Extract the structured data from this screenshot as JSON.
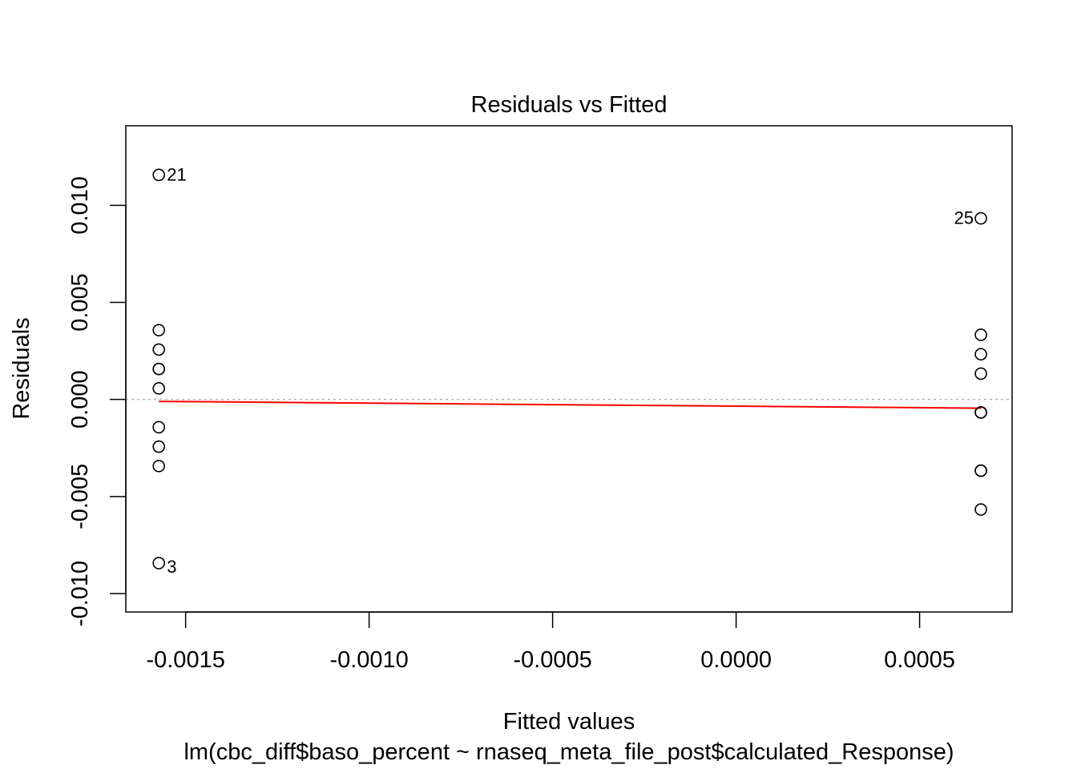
{
  "chart_data": {
    "type": "scatter",
    "title": "Residuals vs Fitted",
    "xlabel": "Fitted values",
    "ylabel": "Residuals",
    "subtitle": "lm(cbc_diff$baso_percent ~ rnaseq_meta_file_post$calculated_Response)",
    "xlim": [
      -0.001663,
      0.000752
    ],
    "ylim": [
      -0.01095,
      0.0141
    ],
    "x_ticks": [
      {
        "value": -0.0015,
        "label": "-0.0015"
      },
      {
        "value": -0.001,
        "label": "-0.0010"
      },
      {
        "value": -0.0005,
        "label": "-0.0005"
      },
      {
        "value": 0.0,
        "label": "0.0000"
      },
      {
        "value": 0.0005,
        "label": "0.0005"
      }
    ],
    "y_ticks": [
      {
        "value": -0.01,
        "label": "-0.010"
      },
      {
        "value": -0.005,
        "label": "-0.005"
      },
      {
        "value": 0.0,
        "label": "0.000"
      },
      {
        "value": 0.005,
        "label": "0.005"
      },
      {
        "value": 0.01,
        "label": "0.010"
      }
    ],
    "points": [
      {
        "x": -0.001573,
        "y": 0.01157,
        "label": "21",
        "label_side": "right"
      },
      {
        "x": -0.001573,
        "y": 0.00357
      },
      {
        "x": -0.001573,
        "y": 0.00257
      },
      {
        "x": -0.001573,
        "y": 0.00157
      },
      {
        "x": -0.001573,
        "y": 0.00157
      },
      {
        "x": -0.001573,
        "y": 0.00057
      },
      {
        "x": -0.001573,
        "y": -0.00143
      },
      {
        "x": -0.001573,
        "y": -0.00243
      },
      {
        "x": -0.001573,
        "y": -0.00343
      },
      {
        "x": -0.001573,
        "y": -0.00843,
        "label": "3",
        "label_side": "right"
      },
      {
        "x": 0.000667,
        "y": 0.00933,
        "label": "25",
        "label_side": "left"
      },
      {
        "x": 0.000667,
        "y": 0.00333
      },
      {
        "x": 0.000667,
        "y": 0.00233
      },
      {
        "x": 0.000667,
        "y": 0.00133
      },
      {
        "x": 0.000667,
        "y": -0.00067
      },
      {
        "x": 0.000667,
        "y": -0.00067
      },
      {
        "x": 0.000667,
        "y": -0.00067
      },
      {
        "x": 0.000667,
        "y": -0.00367
      },
      {
        "x": 0.000667,
        "y": -0.00367
      },
      {
        "x": 0.000667,
        "y": -0.00567
      }
    ],
    "smoother": {
      "x": [
        -0.001573,
        0.000667
      ],
      "y": [
        -0.0001,
        -0.00045
      ],
      "color": "#ff0000"
    },
    "reference_line": {
      "y": 0,
      "color": "#b3b3b3",
      "style": "dotted"
    },
    "grid": false,
    "point_style": "open-circle"
  }
}
